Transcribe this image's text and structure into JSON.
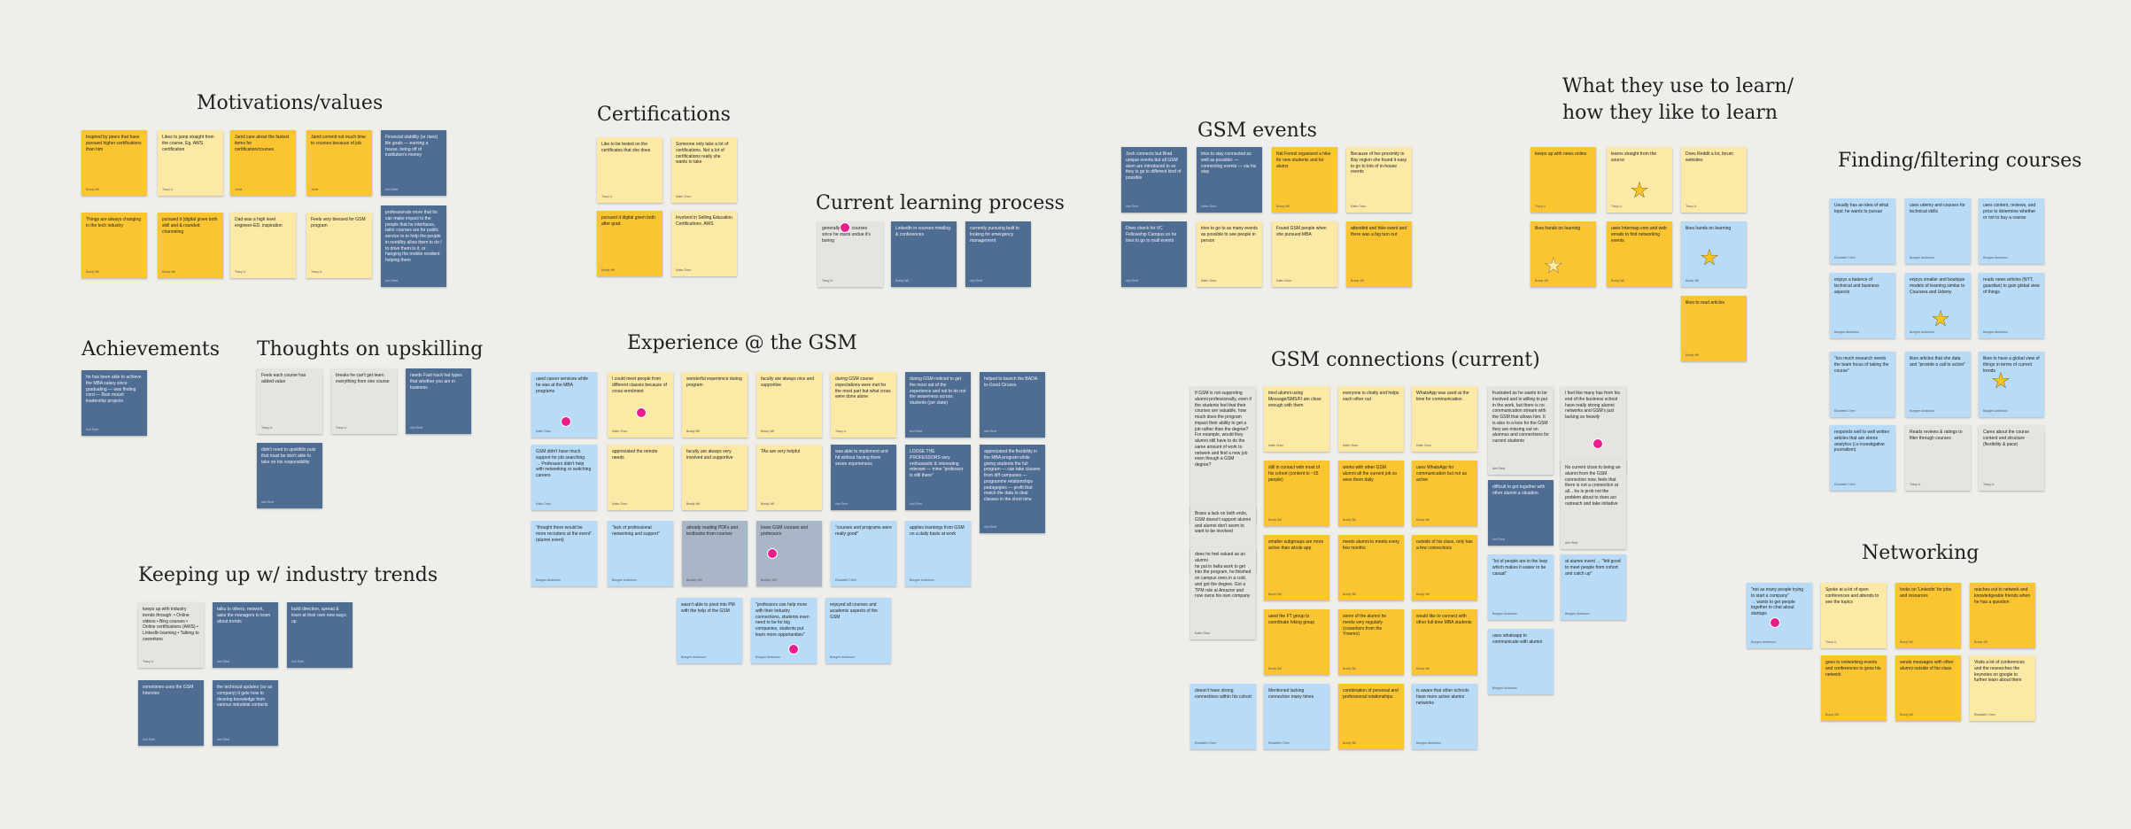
{
  "colors": {
    "canvas": "#efeeeb",
    "yellow": "#fbc531",
    "light_yellow": "#fde9a6",
    "navy": "#4f6c93",
    "grey": "#e6e4e1",
    "light_blue": "#b8dcf8",
    "slate": "#a9b6c8",
    "avatar_marker": "#e91e8c"
  },
  "headings": {
    "motivations": "Motivations/values",
    "certifications": "Certifications",
    "current_learning": "Current learning process",
    "gsm_events": "GSM events",
    "what_they_use_line1": "What they use to learn/",
    "what_they_use_line2": "how they like to learn",
    "finding_courses": "Finding/filtering courses",
    "achievements": "Achievements",
    "thoughts_upskilling": "Thoughts on upskilling",
    "experience_gsm": "Experience @ the GSM",
    "gsm_connections": "GSM connections (current)",
    "keeping_up": "Keeping up w/ industry trends",
    "networking": "Networking"
  },
  "notes": {
    "mot1": {
      "text": "Inspired by peers that have pursued higher certifications than him",
      "author": "Brady Wil"
    },
    "mot2": {
      "text": "Likes to jump straight from the course, Eg. AWS certification",
      "author": "Tracy Li"
    },
    "mot3": {
      "text": "Jamil care about the fastest items for certification/courses",
      "author": "Jamil"
    },
    "mot4": {
      "text": "Jamil commit not much time to courses because of job",
      "author": "Jamil"
    },
    "mot5": {
      "text": "Financial stability (or rises) life goals — earning a house, being off of institution's money",
      "author": "Ami Reel"
    },
    "mot6": {
      "text": "Things are always changing in the tech industry",
      "author": "Brady Wil"
    },
    "mot7": {
      "text": "pursued it (digital given both skill and & rounded channeling",
      "author": "Brady Wil"
    },
    "mot8": {
      "text": "Dad was a high level engineer-ED, inspiration",
      "author": "Tracy Li"
    },
    "mot9": {
      "text": "Feels very blessed for GSM program",
      "author": "Tracy Li"
    },
    "mot10": {
      "text": "professionals more that he can make impact to the people that he interfaces, tailor courses are for public service to to help the people in need/by allow them to do / to drive them to it, or hanging the mobile resident helping them",
      "author": "Ami Reel"
    },
    "cert1": {
      "text": "Like to be tested on the certificates that she does",
      "author": "Tracy Li"
    },
    "cert2": {
      "text": "Someone only take a lot of certifications. Not a lot of certifications really she wants to take",
      "author": "Katie Chun"
    },
    "cert3": {
      "text": "pursued it digital given both after grad",
      "author": "Brady Wil"
    },
    "cert4": {
      "text": "Involved in Selling Education Certifications. AWS",
      "author": "Katie Chun"
    },
    "clp1": {
      "text": "generally finds courses since he starts undue it's boring",
      "author": "Tracy Li"
    },
    "clp2": {
      "text": "LinkedIn in courses mindlog & conferences",
      "author": "Brady Wil"
    },
    "clp3": {
      "text": "currently pursuing built to looking for emergency management",
      "author": "Ami Reel"
    },
    "gse1": {
      "text": "Josh connects but Brad unique events but all GSM alum are introduced to so they is go to different kind of possible",
      "author": "Ami Reel"
    },
    "gse2": {
      "text": "tries to stay connected as well as possible: — connecting events — via his stay",
      "author": "Katie Chun"
    },
    "gse3": {
      "text": "Nat Fernel organized a hike for new students and for alums",
      "author": "Brady Wil"
    },
    "gse4": {
      "text": "Because of her proximity to Bay region she found it easy to go to lots of in-house events",
      "author": "Katie Chun"
    },
    "gse5": {
      "text": "Does check for VC Fellowship Campus so he tries to go to mall events",
      "author": "Ami Reel"
    },
    "gse6": {
      "text": "tries to go to as many events as possible to see people in person",
      "author": "Katie Chun"
    },
    "gse7": {
      "text": "Found GSM people when she pursued MBA",
      "author": "Katie Chun"
    },
    "gse8": {
      "text": "attended and hike event and there was a big turn out",
      "author": "Brady Wil"
    },
    "wtu1": {
      "text": "keeps up with news online",
      "author": "Tracy Li"
    },
    "wtu2": {
      "text": "learns straight from the source",
      "author": "Tracy Li"
    },
    "wtu3": {
      "text": "Does Reddit a lot, forum websites",
      "author": "Tracy Li"
    },
    "wtu4": {
      "text": "likes hands on learning",
      "author": "Brady Wil"
    },
    "wtu5": {
      "text": "uses Intermap.com and web emails to find networking events",
      "author": "Brady Wil"
    },
    "wtu6": {
      "text": "likes hands on learning",
      "author": "Brady Wil"
    },
    "wtu7": {
      "text": "likes to read articles",
      "author": "Brady Wil"
    },
    "fc1": {
      "text": "Usually has an idea of what topic he wants to pursue",
      "author": "Elizabeth Chen"
    },
    "fc2": {
      "text": "uses udemy and courses for technical skills",
      "author": "Bungee Anderson"
    },
    "fc3": {
      "text": "uses content, reviews, and price to determine whether or not to buy a course",
      "author": "Bungee Anderson"
    },
    "fc4": {
      "text": "enjoys a balance of technical and business aspects",
      "author": "Bungee Anderson"
    },
    "fc5": {
      "text": "enjoys smaller and boutique models of learning similar to Coursera and Udemy",
      "author": "Bungee Anderson"
    },
    "fc6": {
      "text": "reads news articles (NYT, guardian) to gain global view of things",
      "author": "Bungee Anderson"
    },
    "fc7": {
      "text": "\"too much research needs the team focus of taking the course\"",
      "author": "Elizabeth Chen"
    },
    "fc8": {
      "text": "likes articles that she data and \"provide a call to action\"",
      "author": "Bungee Anderson"
    },
    "fc9": {
      "text": "likes to have a global view of things in terms of current trends",
      "author": "Bungee Anderson"
    },
    "fc10": {
      "text": "responds well to well written articles that are stores analytics (i.e investigative journalism)",
      "author": "Elizabeth Chen"
    },
    "fc11": {
      "text": "Reads reviews & ratings to filter through courses",
      "author": "Tracy Li"
    },
    "fc12": {
      "text": "Cares about the course content and structure (flexibility & pace)",
      "author": "Tracy Li"
    },
    "ach1": {
      "text": "he has been able to achieve the MBA salary since graduating — was finding cord — Bain mount leadership projects",
      "author": "Ami Reel"
    },
    "tu1": {
      "text": "Feels each course has added value",
      "author": "Tracy Li"
    },
    "tu2": {
      "text": "breaks he can't get learn everything from one course",
      "author": "Tracy Li"
    },
    "tu3": {
      "text": "needs Fast track hat types that whether you are in business",
      "author": "Ami Reel"
    },
    "tu4": {
      "text": "didn't need to upskill/to puts that must be don't able to take on his responsibility",
      "author": "Ami Reel"
    },
    "exp1": {
      "text": "used career services while he was at the MBA programs",
      "author": "Katie Chun"
    },
    "exp2": {
      "text": "I could meet people from different classes because of cross enrolment",
      "author": "Katie Chun"
    },
    "exp3": {
      "text": "wonderful experience during program",
      "author": "Brady Wil"
    },
    "exp4": {
      "text": "faculty are always nice and supportive",
      "author": "Brady Wil"
    },
    "exp5": {
      "text": "during GSM course expectations were met for the most part but what cross were done alone",
      "author": "Tracy Li"
    },
    "exp6": {
      "text": "during GSM noticed to get the most out of the experience and not to do not the awareness across students (per state)",
      "author": "Ami Reel"
    },
    "exp7": {
      "text": "helped to launch the BADA-to-Good Ciruses",
      "author": "Ami Reel"
    },
    "exp8": {
      "text": "GSM didn't have much support for job searching\n→ Professors didn't help with networking or switching careers",
      "author": "Katie Chun"
    },
    "exp9": {
      "text": "appreciated the remote needs",
      "author": "Katie Chun"
    },
    "exp10": {
      "text": "faculty are always very involved and supportive",
      "author": "Brady Wil"
    },
    "exp11": {
      "text": "TAs are very helpful",
      "author": "Brady Wil"
    },
    "exp12": {
      "text": "was able to implement and hit without having them seven experiences",
      "author": "Ami Reel"
    },
    "exp13": {
      "text": "LOOSE THE PROFESSORS very enthusiastic & interesting relevant — mine \"professor is still there\"",
      "author": "Ami Reel"
    },
    "exp14": {
      "text": "appreciated the flexibility in the MBA program while giving students the full program — can take classes from diff campuses — programme relationships pedagogies — profit that match the data to deal classes in the short time",
      "author": "Ami Reel"
    },
    "exp15": {
      "text": "\"thought there would be more recruiters at the event\" (alumni event)",
      "author": "Bungee Anderson"
    },
    "exp16": {
      "text": "\"lack of professional networking and support\"",
      "author": "Bungee Anderson"
    },
    "exp17": {
      "text": "already reading PDFs and textbooks from courses",
      "author": "Bradley Wil"
    },
    "exp18": {
      "text": "loves GSM courses and professors",
      "author": "Bradley Wil"
    },
    "exp19": {
      "text": "\"courses and programs were really good\"",
      "author": "Elizabeth Chen"
    },
    "exp20": {
      "text": "applies learnings from GSM on a daily basis at work",
      "author": "Bungee Anderson"
    },
    "exp21": {
      "text": "wasn't able to pivot into PM with the help of the GSM",
      "author": "Bungee Anderson"
    },
    "exp22": {
      "text": "\"professors can help more with their industry connections, students even need to be for big companies, students put learn more opportunities\"",
      "author": "Bungee Anderson"
    },
    "exp23": {
      "text": "enjoyed all courses and academic aspects of the GSM",
      "author": "Bungee Anderson"
    },
    "con1": {
      "text": "If GSM is not supporting alumni professionally, even if the students feel that their courses are valuable, how much does the program impact their ability to get a job rather than the degree? For example, would they alumni still have to do the same amount of work to network and find a new job even though a GSM degree?",
      "author": "Katie Chun"
    },
    "con2": {
      "text": "tried alumni using Message/SMS/FI am close enough with them",
      "author": "Katie Chun"
    },
    "con3": {
      "text": "everyone is chatty and helps each other out",
      "author": "Katie Chun"
    },
    "con4": {
      "text": "WhatsApp was used at the time for communication",
      "author": "Katie Chun"
    },
    "con5": {
      "text": "frustrated as he wants to be involved and is willing to put in the work, but there is no communication stream with the GSM that allows him. It is also to a loss for the GSM they are missing out on alumnus and connections for current students",
      "author": "Ami Reel"
    },
    "con6": {
      "text": "I feel like many has from his end of the business school have really strong alumni networks and GSM's just lacking so heavily",
      "author": "Ami Reel"
    },
    "con7": {
      "text": "Brans a lack on both ends, GSM doesn't support alumni and alumni don't seem to want to be involved",
      "author": "Katie Chun"
    },
    "con8": {
      "text": "still in contact with most of his cohort (content to ~15 people)",
      "author": "Brady Wil"
    },
    "con9": {
      "text": "works with other GSM alumni all the current job so sees them daily",
      "author": "Brady Wil"
    },
    "con10": {
      "text": "uses WhatsApp for communication but not as active",
      "author": "Brady Wil"
    },
    "con11": {
      "text": "difficult to get together with other alumni a situation",
      "author": "Ami Reel"
    },
    "con12": {
      "text": "No current close to being an alumni from the GSM connection now, feels that there is not a connection at all... he is prob not the problem about to does act outreach and take initiative",
      "author": "Ami Reel"
    },
    "con13": {
      "text": "does he feel valued as an alumni\nhe put in hella work to get into the program, he finished on campus ones in a cold, and got the degree. Got a TPM role at Amazon and now owns his own company",
      "author": "Katie Chun"
    },
    "con14": {
      "text": "smaller subgroups are more active than whole app",
      "author": "Brady Wil"
    },
    "con15": {
      "text": "meets alumni to meets every few months",
      "author": "Brady Wil"
    },
    "con16": {
      "text": "outside of his class, only has a few connections",
      "author": "Brady Wil"
    },
    "con17": {
      "text": "\"lot of people are in the loop which makes it easier to be casual\"",
      "author": "Bungee Anderson"
    },
    "con18": {
      "text": "at alumni event → \"felt good to meet people from cohort and catch up\"",
      "author": "Bungee Anderson"
    },
    "con19": {
      "text": "used the FT group to coordinate hiking group",
      "author": "Brady Wil"
    },
    "con20": {
      "text": "some of the alumni he meets very regularly (coworkers from the Ymemo)",
      "author": "Brady Wil"
    },
    "con21": {
      "text": "would like to connect with other full-time MBA students",
      "author": "Brady Wil"
    },
    "con22": {
      "text": "uses whatsapp to communicate with alumni",
      "author": "Bungee Anderson"
    },
    "con23": {
      "text": "doesn't have strong connections within his cohort",
      "author": "Elizabeth Chen"
    },
    "con24": {
      "text": "Mentioned lacking connection many times",
      "author": "Elizabeth Chen"
    },
    "con25": {
      "text": "combination of personal and professional relationships",
      "author": "Brady Wil"
    },
    "con26": {
      "text": "is aware that other schools have more active alumni networks",
      "author": "Bungee Anderson"
    },
    "kit1": {
      "text": "keeps up with industry trends through: • Online videos • Bing courses • Online certifications (AWS) • LinkedIn learning • Talking to coworkers",
      "author": "Tracy Li"
    },
    "kit2": {
      "text": "talks to others, network, asks the managers to learn about trends",
      "author": "Ami Reel"
    },
    "kit3": {
      "text": "build direction, spread & learn at their own new ways up",
      "author": "Ami Reel"
    },
    "kit4": {
      "text": "sometimes uses the GSM Intervies",
      "author": "Ami Reel"
    },
    "kit5": {
      "text": "the technical updates (so as company) it gets how to develop knowledge from various industrial contacts",
      "author": "Ami Reel"
    },
    "net1": {
      "text": "\"not as many people trying to start a company\"\n→ wants to get people together to chat about startups",
      "author": "Bungee Anderson"
    },
    "net2": {
      "text": "Spoke at a lot of open conferences and attends to see the topics",
      "author": "Tracy Li"
    },
    "net3": {
      "text": "looks on 'Linkedin' for jobs and resources",
      "author": "Brady Wil"
    },
    "net4": {
      "text": "reaches out to network and knowledgeable friends when he has a question",
      "author": "Brady Wil"
    },
    "net5": {
      "text": "goes to networking events and conferences to grow his network",
      "author": "Brady Wil"
    },
    "net6": {
      "text": "sends messages with other alumni outside of his class",
      "author": "Brady Wil"
    },
    "net7": {
      "text": "Visits a lot of conferences and the researches the keynotes on google to further learn about them",
      "author": "Elizabeth Chen"
    }
  }
}
